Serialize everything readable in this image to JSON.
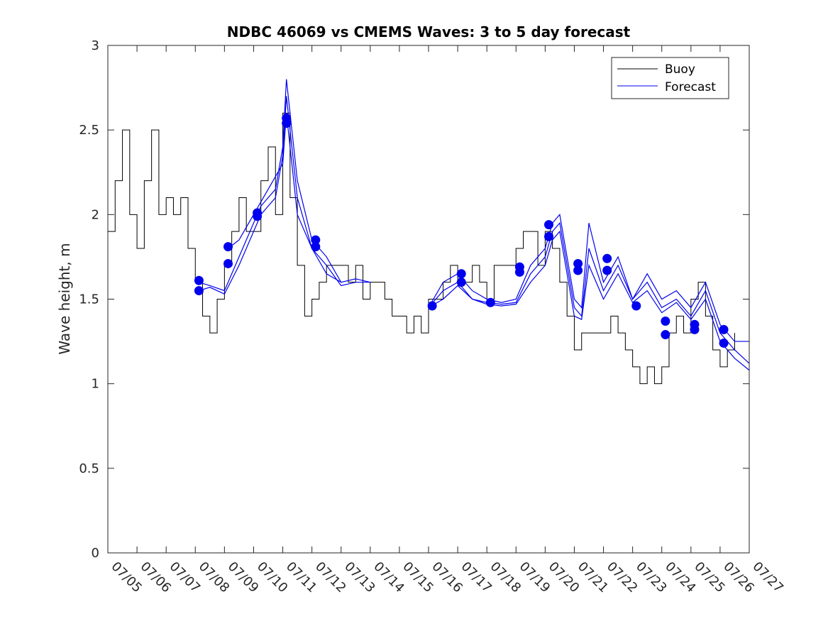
{
  "chart_data": {
    "type": "line",
    "title": "NDBC 46069 vs CMEMS Waves: 3 to 5 day forecast",
    "ylabel": "Wave height, m",
    "xlabel": "",
    "ylim": [
      0,
      3
    ],
    "xlim": [
      "07/05",
      "07/27"
    ],
    "x_ticks": [
      "07/05",
      "07/06",
      "07/07",
      "07/08",
      "07/09",
      "07/10",
      "07/11",
      "07/12",
      "07/13",
      "07/14",
      "07/15",
      "07/16",
      "07/17",
      "07/18",
      "07/19",
      "07/20",
      "07/21",
      "07/22",
      "07/23",
      "07/24",
      "07/25",
      "07/26",
      "07/27"
    ],
    "y_ticks": [
      "0",
      "0.5",
      "1",
      "1.5",
      "2",
      "2.5",
      "3"
    ],
    "grid": false,
    "legend_position": "top-right",
    "series": [
      {
        "name": "Buoy",
        "color": "#000000",
        "x": [
          "07/05",
          "07/05 06:00",
          "07/05 12:00",
          "07/05 18:00",
          "07/06",
          "07/06 06:00",
          "07/06 12:00",
          "07/06 18:00",
          "07/07",
          "07/07 06:00",
          "07/07 12:00",
          "07/07 18:00",
          "07/08",
          "07/08 06:00",
          "07/08 12:00",
          "07/08 18:00",
          "07/09",
          "07/09 06:00",
          "07/09 12:00",
          "07/09 18:00",
          "07/10",
          "07/10 06:00",
          "07/10 12:00",
          "07/10 18:00",
          "07/11",
          "07/11 06:00",
          "07/11 12:00",
          "07/11 18:00",
          "07/12",
          "07/12 06:00",
          "07/12 12:00",
          "07/12 18:00",
          "07/13",
          "07/13 06:00",
          "07/13 12:00",
          "07/13 18:00",
          "07/14",
          "07/14 06:00",
          "07/14 12:00",
          "07/14 18:00",
          "07/15",
          "07/15 06:00",
          "07/15 12:00",
          "07/15 18:00",
          "07/16",
          "07/16 06:00",
          "07/16 12:00",
          "07/16 18:00",
          "07/17",
          "07/17 06:00",
          "07/17 12:00",
          "07/17 18:00",
          "07/18",
          "07/18 06:00",
          "07/18 12:00",
          "07/18 18:00",
          "07/19",
          "07/19 06:00",
          "07/19 12:00",
          "07/19 18:00",
          "07/20",
          "07/20 06:00",
          "07/20 12:00",
          "07/20 18:00",
          "07/21",
          "07/21 06:00",
          "07/21 12:00",
          "07/21 18:00",
          "07/22",
          "07/22 06:00",
          "07/22 12:00",
          "07/22 18:00",
          "07/23",
          "07/23 06:00",
          "07/23 12:00",
          "07/23 18:00",
          "07/24",
          "07/24 06:00",
          "07/24 12:00",
          "07/24 18:00",
          "07/25",
          "07/25 06:00",
          "07/25 12:00",
          "07/25 18:00",
          "07/26",
          "07/26 06:00",
          "07/26 12:00"
        ],
        "values": [
          1.9,
          2.2,
          2.5,
          2.0,
          1.8,
          2.2,
          2.5,
          2.0,
          2.1,
          2.0,
          2.1,
          1.8,
          1.6,
          1.4,
          1.3,
          1.5,
          1.7,
          1.9,
          2.1,
          1.9,
          1.9,
          2.2,
          2.4,
          2.0,
          2.6,
          2.1,
          1.7,
          1.4,
          1.5,
          1.6,
          1.7,
          1.7,
          1.7,
          1.6,
          1.7,
          1.5,
          1.6,
          1.6,
          1.5,
          1.4,
          1.4,
          1.3,
          1.4,
          1.3,
          1.5,
          1.5,
          1.6,
          1.7,
          1.6,
          1.6,
          1.7,
          1.6,
          1.5,
          1.7,
          1.7,
          1.7,
          1.8,
          1.9,
          1.9,
          1.7,
          1.9,
          1.8,
          1.6,
          1.4,
          1.2,
          1.3,
          1.3,
          1.3,
          1.3,
          1.4,
          1.3,
          1.2,
          1.1,
          1.0,
          1.1,
          1.0,
          1.1,
          1.3,
          1.4,
          1.3,
          1.5,
          1.6,
          1.4,
          1.2,
          1.1,
          1.2,
          1.3
        ]
      },
      {
        "name": "Forecast",
        "color": "#0000ee",
        "runs": [
          {
            "x": [
              "07/08 03:00",
              "07/08 12:00",
              "07/09",
              "07/09 12:00",
              "07/10",
              "07/10 06:00",
              "07/10 12:00",
              "07/10 18:00",
              "07/11",
              "07/11 03:00",
              "07/11 12:00",
              "07/12",
              "07/12 12:00",
              "07/13",
              "07/13 12:00",
              "07/14"
            ],
            "values": [
              1.6,
              1.58,
              1.55,
              1.75,
              1.95,
              2.05,
              2.1,
              2.15,
              2.4,
              2.8,
              2.2,
              1.85,
              1.75,
              1.6,
              1.62,
              1.6
            ]
          },
          {
            "x": [
              "07/08 03:00",
              "07/08 12:00",
              "07/09",
              "07/09 12:00",
              "07/10",
              "07/10 06:00",
              "07/10 12:00",
              "07/10 18:00",
              "07/11",
              "07/11 03:00",
              "07/11 12:00",
              "07/12",
              "07/12 12:00",
              "07/13",
              "07/13 12:00",
              "07/14"
            ],
            "values": [
              1.55,
              1.57,
              1.53,
              1.7,
              1.9,
              2.0,
              2.05,
              2.1,
              2.35,
              2.7,
              2.1,
              1.8,
              1.7,
              1.58,
              1.6,
              1.6
            ]
          },
          {
            "x": [
              "07/09 03:00",
              "07/09 12:00",
              "07/10",
              "07/10 12:00",
              "07/11",
              "07/11 03:00",
              "07/11 12:00",
              "07/12",
              "07/12 12:00",
              "07/13"
            ],
            "values": [
              1.8,
              1.85,
              2.0,
              2.15,
              2.3,
              2.6,
              2.0,
              1.8,
              1.65,
              1.6
            ]
          },
          {
            "x": [
              "07/16",
              "07/16 12:00",
              "07/17",
              "07/17 12:00",
              "07/18",
              "07/18 12:00",
              "07/19",
              "07/19 12:00",
              "07/20",
              "07/20 06:00",
              "07/20 12:00",
              "07/21",
              "07/21 06:00",
              "07/21 12:00",
              "07/22",
              "07/22 12:00",
              "07/23",
              "07/23 12:00",
              "07/24",
              "07/24 12:00",
              "07/25",
              "07/25 12:00",
              "07/26",
              "07/26 12:00",
              "07/27"
            ],
            "values": [
              1.45,
              1.6,
              1.65,
              1.55,
              1.5,
              1.48,
              1.5,
              1.7,
              1.8,
              1.95,
              2.0,
              1.5,
              1.45,
              1.95,
              1.6,
              1.75,
              1.5,
              1.65,
              1.5,
              1.55,
              1.45,
              1.6,
              1.35,
              1.25,
              1.25
            ]
          },
          {
            "x": [
              "07/16",
              "07/16 12:00",
              "07/17",
              "07/17 12:00",
              "07/18",
              "07/18 12:00",
              "07/19",
              "07/19 12:00",
              "07/20",
              "07/20 06:00",
              "07/20 12:00",
              "07/21",
              "07/21 06:00",
              "07/21 12:00",
              "07/22",
              "07/22 12:00",
              "07/23",
              "07/23 12:00",
              "07/24",
              "07/24 12:00",
              "07/25",
              "07/25 12:00",
              "07/26",
              "07/26 12:00",
              "07/27"
            ],
            "values": [
              1.45,
              1.55,
              1.6,
              1.5,
              1.48,
              1.47,
              1.48,
              1.65,
              1.75,
              1.9,
              1.95,
              1.45,
              1.4,
              1.8,
              1.55,
              1.7,
              1.5,
              1.6,
              1.45,
              1.5,
              1.4,
              1.55,
              1.3,
              1.2,
              1.12
            ]
          },
          {
            "x": [
              "07/16",
              "07/16 12:00",
              "07/17",
              "07/17 12:00",
              "07/18",
              "07/18 12:00",
              "07/19",
              "07/19 12:00",
              "07/20",
              "07/20 06:00",
              "07/20 12:00",
              "07/21",
              "07/21 06:00",
              "07/21 12:00",
              "07/22",
              "07/22 12:00",
              "07/23",
              "07/23 12:00",
              "07/24",
              "07/24 12:00",
              "07/25",
              "07/25 12:00",
              "07/26",
              "07/26 12:00",
              "07/27"
            ],
            "values": [
              1.45,
              1.5,
              1.58,
              1.5,
              1.47,
              1.46,
              1.47,
              1.6,
              1.7,
              1.85,
              1.9,
              1.4,
              1.38,
              1.7,
              1.5,
              1.65,
              1.48,
              1.55,
              1.42,
              1.48,
              1.38,
              1.5,
              1.25,
              1.15,
              1.08
            ]
          }
        ],
        "markers": {
          "x": [
            "07/08 03:00",
            "07/08 03:00",
            "07/09 03:00",
            "07/09 03:00",
            "07/10 03:00",
            "07/10 03:00",
            "07/11 03:00",
            "07/11 03:00",
            "07/12 03:00",
            "07/12 03:00",
            "07/16 03:00",
            "07/17 03:00",
            "07/17 03:00",
            "07/18 03:00",
            "07/19 03:00",
            "07/19 03:00",
            "07/20 03:00",
            "07/20 03:00",
            "07/21 03:00",
            "07/21 03:00",
            "07/22 03:00",
            "07/22 03:00",
            "07/23 03:00",
            "07/24 03:00",
            "07/24 03:00",
            "07/25 03:00",
            "07/25 03:00",
            "07/26 03:00",
            "07/26 03:00"
          ],
          "values": [
            1.61,
            1.55,
            1.81,
            1.71,
            2.01,
            1.99,
            2.57,
            2.54,
            1.85,
            1.81,
            1.46,
            1.65,
            1.6,
            1.48,
            1.69,
            1.66,
            1.94,
            1.87,
            1.71,
            1.67,
            1.74,
            1.67,
            1.46,
            1.37,
            1.29,
            1.35,
            1.32,
            1.32,
            1.24
          ]
        }
      }
    ]
  }
}
